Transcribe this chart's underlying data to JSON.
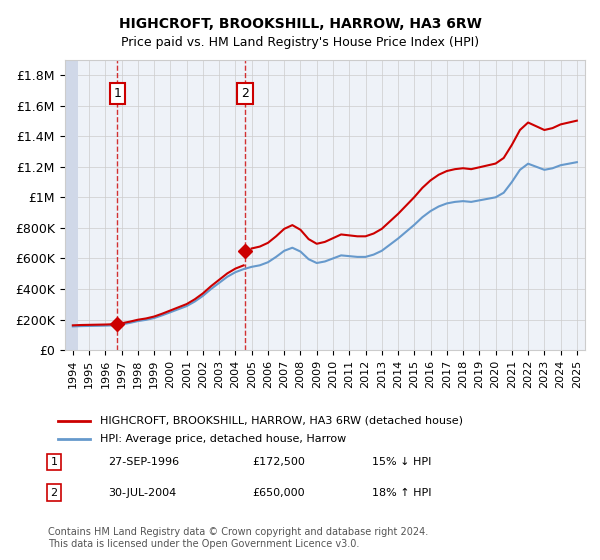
{
  "title": "HIGHCROFT, BROOKSHILL, HARROW, HA3 6RW",
  "subtitle": "Price paid vs. HM Land Registry's House Price Index (HPI)",
  "ylim": [
    0,
    1900000
  ],
  "yticks": [
    0,
    200000,
    400000,
    600000,
    800000,
    1000000,
    1200000,
    1400000,
    1600000,
    1800000
  ],
  "ytick_labels": [
    "£0",
    "£200K",
    "£400K",
    "£600K",
    "£800K",
    "£1M",
    "£1.2M",
    "£1.4M",
    "£1.6M",
    "£1.8M"
  ],
  "xlim_start": 1993.5,
  "xlim_end": 2025.5,
  "transaction1_x": 1996.74,
  "transaction1_y": 172500,
  "transaction2_x": 2004.58,
  "transaction2_y": 650000,
  "legend_line1": "HIGHCROFT, BROOKSHILL, HARROW, HA3 6RW (detached house)",
  "legend_line2": "HPI: Average price, detached house, Harrow",
  "table_row1_label": "1",
  "table_row1_date": "27-SEP-1996",
  "table_row1_price": "£172,500",
  "table_row1_hpi": "15% ↓ HPI",
  "table_row2_label": "2",
  "table_row2_date": "30-JUL-2004",
  "table_row2_price": "£650,000",
  "table_row2_hpi": "18% ↑ HPI",
  "footer": "Contains HM Land Registry data © Crown copyright and database right 2024.\nThis data is licensed under the Open Government Licence v3.0.",
  "line_color_red": "#cc0000",
  "line_color_blue": "#6699cc",
  "hatch_color": "#d0d8e8",
  "grid_color": "#cccccc",
  "bg_color": "#eef2f8"
}
